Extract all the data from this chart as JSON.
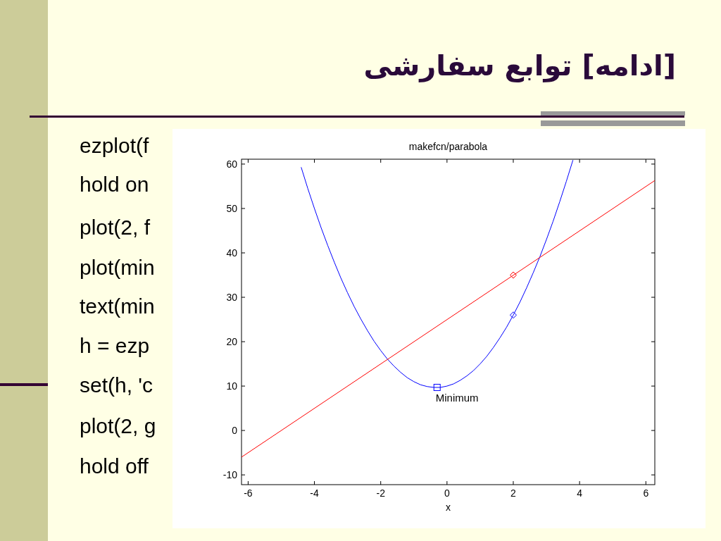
{
  "chart_data": {
    "type": "line",
    "title": "makefcn/parabola",
    "xlabel": "x",
    "xlim": [
      -6.2,
      6.27
    ],
    "ylim": [
      -12.2,
      61.1
    ],
    "xticks": [
      -6,
      -4,
      -2,
      0,
      2,
      4,
      6
    ],
    "yticks": [
      -10,
      0,
      10,
      20,
      30,
      40,
      50,
      60
    ],
    "series": [
      {
        "type": "line",
        "color": "#0000ff",
        "marker": "none",
        "x": [
          -4.4,
          -4.2,
          -4.0,
          -3.8,
          -3.6,
          -3.4,
          -3.2,
          -3.0,
          -2.8,
          -2.6,
          -2.4,
          -2.2,
          -2.0,
          -1.8,
          -1.6,
          -1.4,
          -1.2,
          -1.0,
          -0.8,
          -0.6,
          -0.4,
          -0.2,
          0,
          0.2,
          0.4,
          0.6,
          0.8,
          1.0,
          1.2,
          1.4,
          1.6,
          1.8,
          2.0,
          2.2,
          2.4,
          2.6,
          2.8,
          3.0,
          3.2,
          3.4,
          3.6,
          3.8
        ],
        "values": [
          59.3,
          54.5,
          50,
          45.7,
          41.7,
          37.9,
          34.3,
          31,
          27.9,
          25.1,
          22.5,
          20.1,
          18,
          16.1,
          14.5,
          13.1,
          11.9,
          11,
          10.3,
          9.9,
          9.7,
          9.7,
          10,
          10.5,
          11.3,
          12.3,
          13.5,
          15,
          16.7,
          18.7,
          20.9,
          23.3,
          26,
          28.9,
          32.1,
          35.5,
          39.1,
          43,
          47.1,
          51.5,
          56.1,
          60.9
        ]
      },
      {
        "type": "line",
        "color": "#ff0000",
        "marker": "none",
        "x": [
          -6.2,
          6.27
        ],
        "values": [
          -6,
          56.3
        ]
      },
      {
        "type": "scatter",
        "color": "#ff0000",
        "marker": "diamond",
        "x": [
          2
        ],
        "values": [
          35
        ]
      },
      {
        "type": "scatter",
        "color": "#0000ff",
        "marker": "diamond",
        "x": [
          2
        ],
        "values": [
          26
        ]
      },
      {
        "type": "scatter",
        "color": "#0000ff",
        "marker": "square",
        "x": [
          -0.3
        ],
        "values": [
          9.7
        ]
      }
    ],
    "annotations": [
      {
        "text": "Minimum",
        "x": -0.3,
        "y": 9.7
      },
      "[ادامه] توابع سفارشی",
      "ezplot(f",
      "hold on",
      "plot(2, f",
      "plot(min",
      "text(min",
      "h = ezp",
      "set(h, 'c",
      "plot(2, g",
      "hold off"
    ]
  }
}
